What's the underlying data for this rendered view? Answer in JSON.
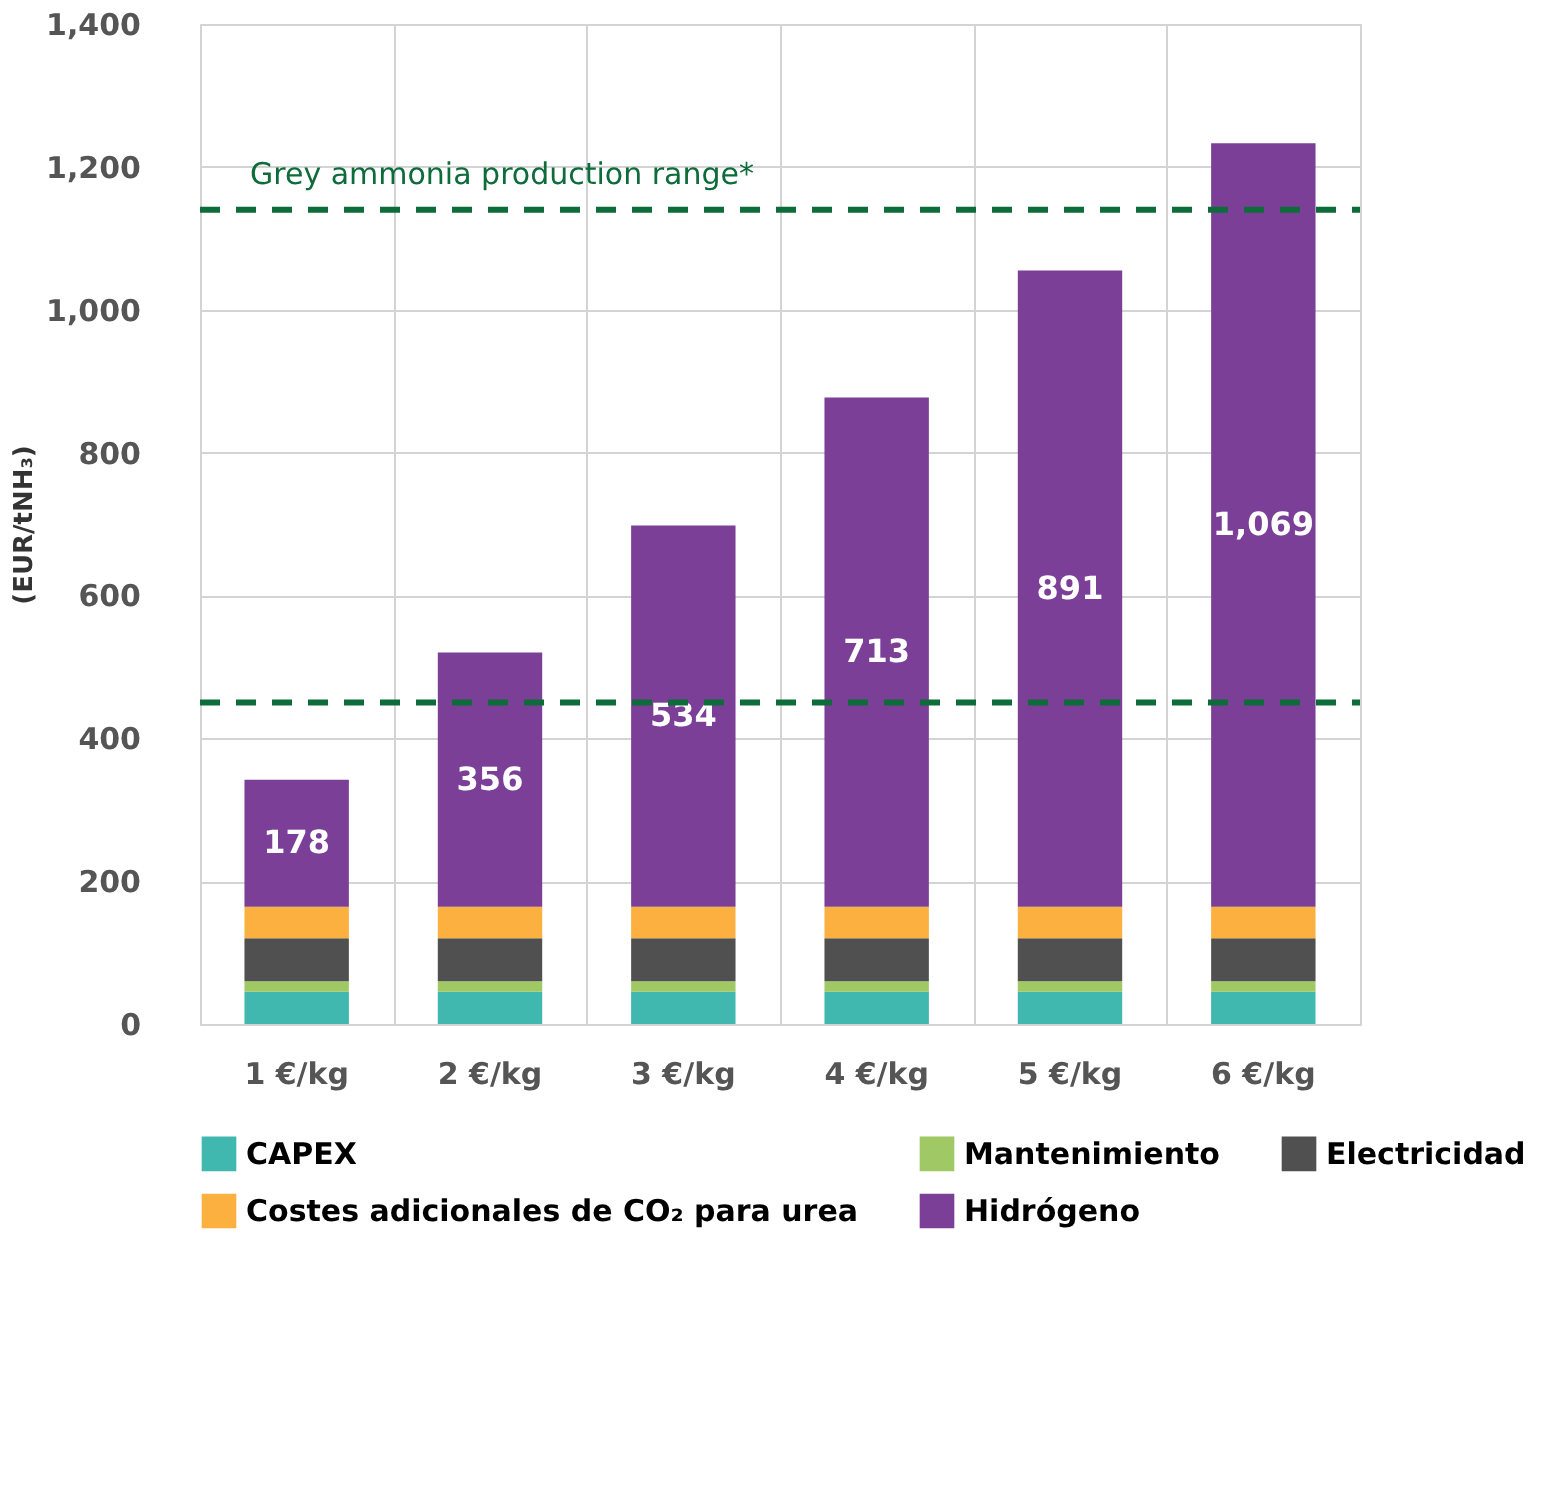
{
  "chart_data": {
    "type": "bar",
    "stacked": true,
    "ylabel": "(EUR/tNH₃)",
    "categories": [
      "1 €/kg",
      "2 €/kg",
      "3 €/kg",
      "4 €/kg",
      "5 €/kg",
      "6 €/kg"
    ],
    "series": [
      {
        "name": "CAPEX",
        "color": "#40b8b0",
        "values": [
          45,
          45,
          45,
          45,
          45,
          45
        ]
      },
      {
        "name": "Mantenimiento",
        "color": "#a0c864",
        "values": [
          15,
          15,
          15,
          15,
          15,
          15
        ]
      },
      {
        "name": "Electricidad",
        "color": "#505050",
        "values": [
          60,
          60,
          60,
          60,
          60,
          60
        ]
      },
      {
        "name": "Costes adicionales de CO₂ para urea",
        "color": "#fbb040",
        "values": [
          44,
          44,
          44,
          44,
          44,
          44
        ]
      },
      {
        "name": "Hidrógeno",
        "color": "#7b3f98",
        "values": [
          178,
          356,
          534,
          713,
          891,
          1069
        ],
        "value_labels": [
          "178",
          "356",
          "534",
          "713",
          "891",
          "1,069"
        ]
      }
    ],
    "ylim": [
      0,
      1400
    ],
    "yticks": [
      {
        "value": 0,
        "label": "0"
      },
      {
        "value": 200,
        "label": "200"
      },
      {
        "value": 400,
        "label": "400"
      },
      {
        "value": 600,
        "label": "600"
      },
      {
        "value": 800,
        "label": "800"
      },
      {
        "value": 1000,
        "label": "1,000"
      },
      {
        "value": 1200,
        "label": "1,200"
      },
      {
        "value": 1400,
        "label": "1,400"
      }
    ],
    "ref_lines": [
      {
        "axis": "y",
        "value": 1140,
        "label": "Grey ammonia production range*",
        "color": "#0e6b3a",
        "line_style": "dashed"
      },
      {
        "axis": "y",
        "value": 450,
        "color": "#0e6b3a",
        "line_style": "dashed"
      }
    ],
    "grid": true,
    "legend": "bottom"
  }
}
